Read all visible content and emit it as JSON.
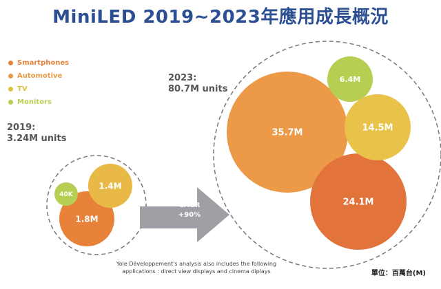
{
  "title": "MiniLED 2019~2023年應用成長概況",
  "legend": [
    {
      "label": "Smartphones",
      "color": "#e8823a"
    },
    {
      "label": "Automotive",
      "color": "#e59a45"
    },
    {
      "label": "TV",
      "color": "#dcc23f"
    },
    {
      "label": "Monitors",
      "color": "#b6cf52"
    }
  ],
  "groups": [
    {
      "year_label": "2019:",
      "total_label": "3.24M units"
    },
    {
      "year_label": "2023:",
      "total_label": "80.7M units"
    }
  ],
  "cagr": {
    "line1": "CAGR",
    "line2": "+90%"
  },
  "footnote": {
    "line1": "Yole Développement's analysis also includes the following",
    "line2": "applications : direct view displays and cinema diplays"
  },
  "unit_label": "單位：百萬台(M)",
  "chart_data": {
    "type": "bubble",
    "title": "MiniLED 2019~2023年應用成長概況",
    "unit": "M",
    "series": [
      {
        "name": "2019",
        "total_label": "3.24M units",
        "points": [
          {
            "label": "1.8M",
            "value": 1.8,
            "color": "#e8823a"
          },
          {
            "label": "1.4M",
            "value": 1.4,
            "color": "#e9b948"
          },
          {
            "label": "40K",
            "value": 0.04,
            "color": "#b6cf52"
          }
        ]
      },
      {
        "name": "2023",
        "total_label": "80.7M units",
        "points": [
          {
            "label": "35.7M",
            "value": 35.7,
            "color": "#ec9a47"
          },
          {
            "label": "24.1M",
            "value": 24.1,
            "color": "#e2733a"
          },
          {
            "label": "14.5M",
            "value": 14.5,
            "color": "#e9c24a"
          },
          {
            "label": "6.4M",
            "value": 6.4,
            "color": "#b6cf52"
          }
        ]
      }
    ],
    "annotation": "CAGR +90%"
  }
}
